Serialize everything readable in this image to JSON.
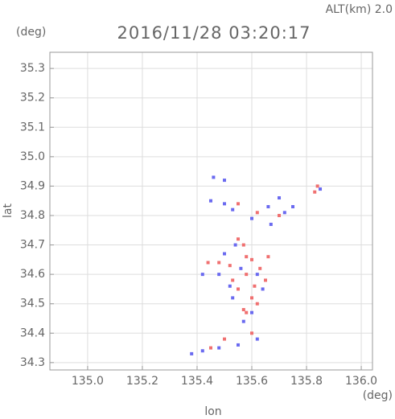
{
  "chart_data": {
    "type": "scatter",
    "title": "2016/11/28 03:20:17",
    "subtitle": "ALT(km) 2.0",
    "y_unit": "(deg)",
    "x_unit": "(deg)",
    "xlabel": "lon",
    "ylabel": "lat",
    "xlim": [
      134.862,
      136.041
    ],
    "ylim": [
      34.275,
      35.355
    ],
    "xticks": [
      {
        "value": 135.0,
        "label": "135.0"
      },
      135.2,
      135.4,
      135.6,
      135.8,
      {
        "value": 136.0,
        "label": "136.0"
      }
    ],
    "yticks": [
      34.3,
      34.4,
      34.5,
      34.6,
      34.7,
      34.8,
      34.9,
      {
        "value": 35.0,
        "label": "35.0"
      },
      35.1,
      35.2,
      35.3
    ],
    "grid": true,
    "series": [
      {
        "color": "#f07070",
        "x": [
          135.55,
          135.57,
          135.6,
          135.63,
          135.58,
          135.55,
          135.6,
          135.57,
          135.62,
          135.65,
          135.52,
          135.48,
          135.44,
          135.58,
          135.66,
          135.55,
          135.62,
          135.7,
          135.83,
          135.84,
          135.58,
          135.61,
          135.53,
          135.5,
          135.45,
          135.6
        ],
        "y": [
          34.72,
          34.7,
          34.65,
          34.62,
          34.6,
          34.55,
          34.52,
          34.48,
          34.5,
          34.58,
          34.63,
          34.64,
          34.64,
          34.66,
          34.66,
          34.84,
          34.81,
          34.8,
          34.88,
          34.9,
          34.47,
          34.56,
          34.58,
          34.38,
          34.35,
          34.4
        ]
      },
      {
        "color": "#6a6af0",
        "x": [
          135.5,
          135.46,
          135.45,
          135.5,
          135.53,
          135.6,
          135.66,
          135.7,
          135.72,
          135.67,
          135.54,
          135.5,
          135.48,
          135.52,
          135.56,
          135.62,
          135.64,
          135.6,
          135.57,
          135.53,
          135.42,
          135.48,
          135.55,
          135.62,
          135.38,
          135.42,
          135.75,
          135.85
        ],
        "y": [
          34.92,
          34.93,
          34.85,
          34.84,
          34.82,
          34.79,
          34.83,
          34.86,
          34.81,
          34.77,
          34.7,
          34.67,
          34.6,
          34.56,
          34.62,
          34.6,
          34.55,
          34.47,
          34.44,
          34.52,
          34.34,
          34.35,
          34.36,
          34.38,
          34.33,
          34.6,
          34.83,
          34.89
        ]
      }
    ]
  }
}
